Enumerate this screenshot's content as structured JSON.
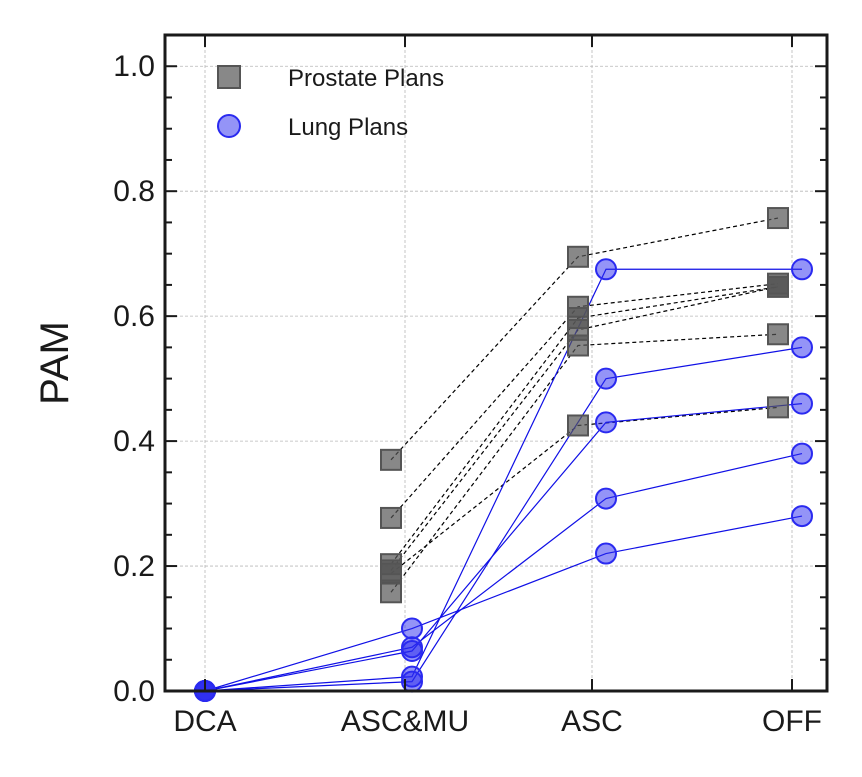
{
  "chart_data": {
    "type": "scatter",
    "title": "",
    "xlabel": "",
    "ylabel": "PAM",
    "categories": [
      "DCA",
      "ASC&MU",
      "ASC",
      "OFF"
    ],
    "ylim": [
      0,
      1.05
    ],
    "yticks": [
      "0.0",
      "0.2",
      "0.4",
      "0.6",
      "0.8",
      "1.0"
    ],
    "grid": true,
    "legend_position": "top-left",
    "series": [
      {
        "name": "Prostate Plans",
        "marker": "square",
        "color": "#555555",
        "line_style": "dashed",
        "line_color": "#000000",
        "lines": [
          [
            0.37,
            0.695,
            0.757
          ],
          [
            0.277,
            0.615,
            0.652
          ],
          [
            0.203,
            0.597,
            0.647
          ],
          [
            0.193,
            0.578,
            0.647
          ],
          [
            0.158,
            0.553,
            0.571
          ],
          [
            0.188,
            0.425,
            0.454
          ]
        ]
      },
      {
        "name": "Lung Plans",
        "marker": "circle",
        "color": "#1010e6",
        "line_style": "solid",
        "line_color": "#1010e6",
        "lines": [
          [
            0,
            0.023,
            0.675,
            0.675
          ],
          [
            0,
            0.064,
            0.43,
            0.46
          ],
          [
            0,
            0.07,
            0.308,
            0.38
          ],
          [
            0,
            0.015,
            0.5,
            0.55
          ],
          [
            0,
            0.1,
            0.22,
            0.28
          ]
        ]
      }
    ]
  },
  "legend": {
    "prostate_label": "Prostate Plans",
    "lung_label": "Lung Plans"
  },
  "colors": {
    "prostate_fill": "#555555",
    "lung_fill": "#2a2af0",
    "lung_line": "#1010e6",
    "axis": "#1a1a1a",
    "grid": "#b8b8b8"
  }
}
